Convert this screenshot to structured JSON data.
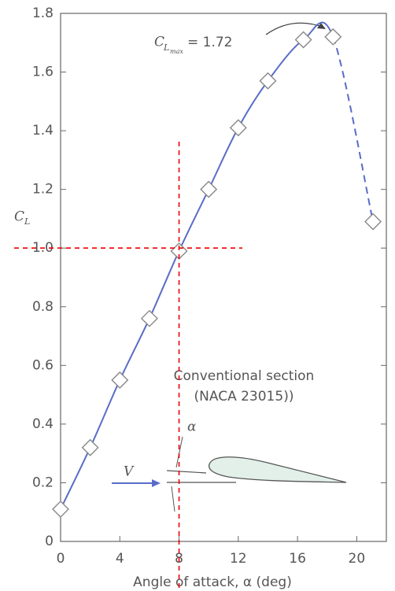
{
  "chart_data": {
    "type": "line",
    "x": [
      0,
      2,
      4,
      6,
      8,
      10,
      12,
      14,
      16.4,
      18.4,
      21.1
    ],
    "y": [
      0.11,
      0.32,
      0.55,
      0.76,
      0.99,
      1.2,
      1.41,
      1.57,
      1.71,
      1.72,
      1.09
    ],
    "color": "#5a6cc8",
    "marker": "diamond",
    "line_dash_from_index": 9,
    "xlim": [
      0,
      22
    ],
    "ylim": [
      0,
      1.8
    ],
    "xticks": [
      0,
      4,
      8,
      12,
      16,
      20
    ],
    "yticks": [
      0,
      0.2,
      0.4,
      0.6,
      0.8,
      {
        "value": 1,
        "label": "1.0"
      },
      1.2,
      1.4,
      1.6,
      1.8
    ],
    "xlabel": "Angle of attack, α (deg)",
    "ylabel": {
      "symbol": "C",
      "subscript": "L"
    },
    "annotation": {
      "symbol": "C",
      "subscript": "L",
      "subsubscript": "max",
      "text": "= 1.72"
    },
    "inset": {
      "title": "Conventional section",
      "subtitle": "(NACA 23015))",
      "angle": "α",
      "velocity": "V"
    },
    "reference_lines": {
      "x": 8,
      "y": 1
    }
  }
}
